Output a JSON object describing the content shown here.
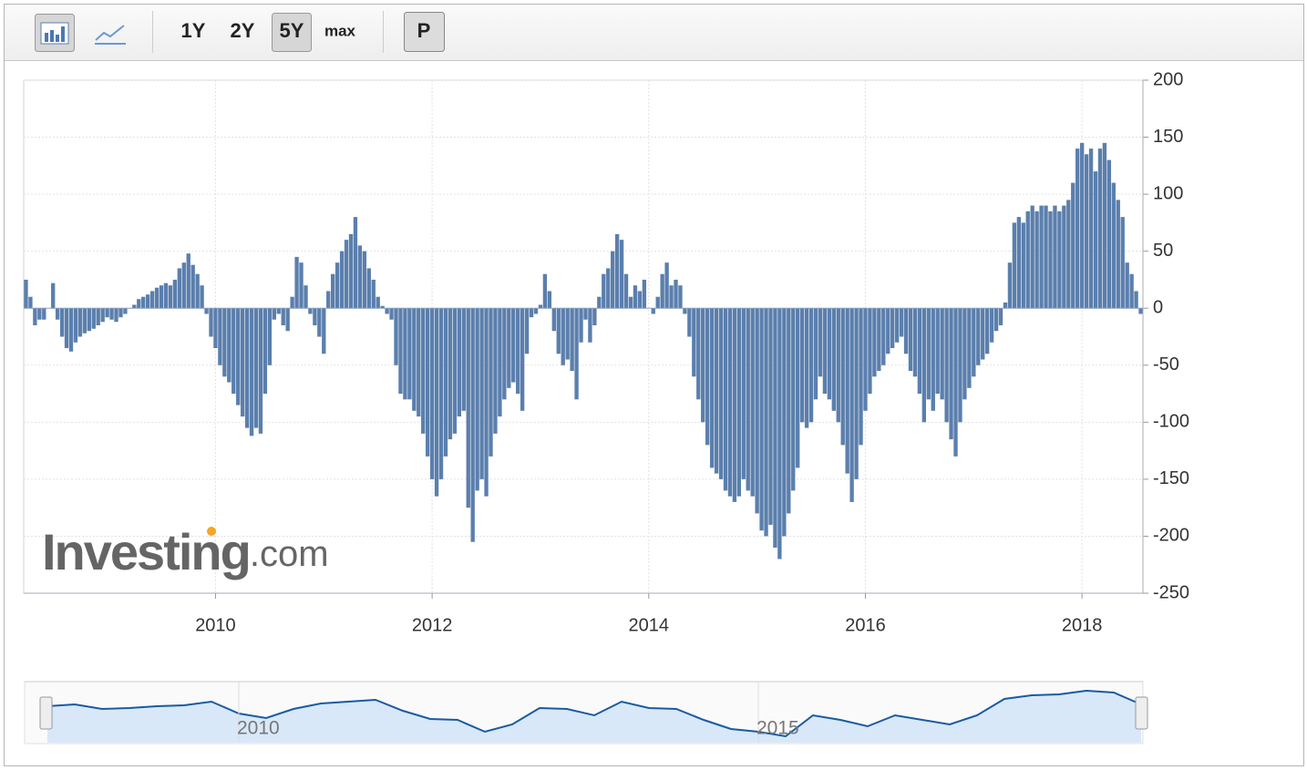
{
  "toolbar": {
    "ranges": [
      "1Y",
      "2Y",
      "5Y",
      "max"
    ],
    "button": "P"
  },
  "watermark": [
    "Investing",
    ".com"
  ],
  "chart_data": [
    {
      "type": "bar",
      "color": "#5b7fad",
      "grid": true,
      "ylim": [
        -250,
        200
      ],
      "yticks": [
        -250,
        -200,
        -150,
        -100,
        -50,
        0,
        50,
        100,
        150,
        200
      ],
      "categories": [
        null,
        null,
        null,
        null,
        null,
        null,
        null,
        null,
        null,
        null,
        null,
        null,
        null,
        null,
        null,
        null,
        null,
        null,
        null,
        null,
        null,
        null,
        null,
        null,
        null,
        null,
        null,
        null,
        null,
        null,
        null,
        null,
        null,
        null,
        null,
        null,
        null,
        null,
        null,
        null,
        null,
        null,
        "2010",
        null,
        null,
        null,
        null,
        null,
        null,
        null,
        null,
        null,
        null,
        null,
        null,
        null,
        null,
        null,
        null,
        null,
        null,
        null,
        null,
        null,
        null,
        null,
        null,
        null,
        null,
        null,
        null,
        null,
        null,
        null,
        null,
        null,
        null,
        null,
        null,
        null,
        null,
        null,
        null,
        null,
        null,
        null,
        null,
        null,
        null,
        null,
        "2012",
        null,
        null,
        null,
        null,
        null,
        null,
        null,
        null,
        null,
        null,
        null,
        null,
        null,
        null,
        null,
        null,
        null,
        null,
        null,
        null,
        null,
        null,
        null,
        null,
        null,
        null,
        null,
        null,
        null,
        null,
        null,
        null,
        null,
        null,
        null,
        null,
        null,
        null,
        null,
        null,
        null,
        null,
        null,
        null,
        null,
        null,
        null,
        "2014",
        null,
        null,
        null,
        null,
        null,
        null,
        null,
        null,
        null,
        null,
        null,
        null,
        null,
        null,
        null,
        null,
        null,
        null,
        null,
        null,
        null,
        null,
        null,
        null,
        null,
        null,
        null,
        null,
        null,
        null,
        null,
        null,
        null,
        null,
        null,
        null,
        null,
        null,
        null,
        null,
        null,
        null,
        null,
        null,
        null,
        null,
        null,
        "2016",
        null,
        null,
        null,
        null,
        null,
        null,
        null,
        null,
        null,
        null,
        null,
        null,
        null,
        null,
        null,
        null,
        null,
        null,
        null,
        null,
        null,
        null,
        null,
        null,
        null,
        null,
        null,
        null,
        null,
        null,
        null,
        null,
        null,
        null,
        null,
        null,
        null,
        null,
        null,
        null,
        null,
        null,
        null,
        null,
        null,
        null,
        null,
        "2018",
        null,
        null,
        null,
        null,
        null,
        null,
        null,
        null,
        null,
        null,
        null,
        null,
        null
      ],
      "values": [
        25,
        10,
        -15,
        -10,
        -10,
        0,
        22,
        -10,
        -25,
        -35,
        -38,
        -30,
        -25,
        -22,
        -20,
        -18,
        -15,
        -12,
        -8,
        -10,
        -12,
        -8,
        -5,
        0,
        3,
        8,
        10,
        12,
        15,
        18,
        20,
        22,
        20,
        25,
        35,
        40,
        48,
        38,
        30,
        20,
        -5,
        -25,
        -35,
        -50,
        -60,
        -65,
        -75,
        -85,
        -95,
        -105,
        -112,
        -105,
        -110,
        -75,
        -50,
        -10,
        -5,
        -15,
        -20,
        10,
        45,
        40,
        20,
        -5,
        -15,
        -25,
        -40,
        15,
        30,
        40,
        50,
        60,
        65,
        80,
        55,
        50,
        35,
        25,
        10,
        2,
        -5,
        -10,
        -50,
        -75,
        -80,
        -80,
        -90,
        -95,
        -110,
        -130,
        -150,
        -165,
        -150,
        -130,
        -115,
        -110,
        -95,
        -90,
        -175,
        -205,
        -160,
        -150,
        -165,
        -130,
        -110,
        -95,
        -80,
        -70,
        -65,
        -75,
        -90,
        -40,
        -8,
        -5,
        3,
        30,
        15,
        -20,
        -40,
        -50,
        -45,
        -55,
        -80,
        -30,
        -10,
        -30,
        -15,
        10,
        30,
        35,
        50,
        65,
        60,
        30,
        10,
        20,
        15,
        25,
        0,
        -5,
        10,
        30,
        40,
        20,
        25,
        20,
        -5,
        -25,
        -60,
        -80,
        -100,
        -120,
        -140,
        -145,
        -150,
        -160,
        -165,
        -170,
        -165,
        -150,
        -160,
        -165,
        -180,
        -195,
        -200,
        -190,
        -210,
        -220,
        -200,
        -180,
        -160,
        -140,
        -100,
        -105,
        -100,
        -80,
        -60,
        -75,
        -80,
        -90,
        -100,
        -120,
        -145,
        -170,
        -150,
        -120,
        -90,
        -75,
        -60,
        -55,
        -50,
        -40,
        -35,
        -30,
        -25,
        -40,
        -55,
        -60,
        -75,
        -100,
        -80,
        -90,
        -75,
        -80,
        -100,
        -115,
        -130,
        -100,
        -80,
        -70,
        -60,
        -50,
        -45,
        -40,
        -30,
        -20,
        -15,
        5,
        40,
        75,
        80,
        75,
        85,
        90,
        85,
        90,
        90,
        85,
        90,
        85,
        90,
        95,
        110,
        140,
        145,
        135,
        140,
        120,
        140,
        145,
        130,
        110,
        95,
        80,
        40,
        30,
        15,
        -5
      ]
    },
    {
      "type": "line",
      "color": "#1a5aa0",
      "ylim": [
        0,
        70
      ],
      "categories": [
        null,
        null,
        null,
        null,
        null,
        null,
        null,
        "2010",
        null,
        null,
        null,
        null,
        null,
        null,
        null,
        null,
        null,
        null,
        null,
        null,
        null,
        null,
        null,
        null,
        null,
        null,
        "2015",
        null,
        null,
        null,
        null,
        null,
        null,
        null,
        null,
        null,
        null,
        null,
        null,
        null,
        null
      ],
      "values": [
        40,
        42,
        37,
        38,
        40,
        41,
        45,
        32,
        27,
        37,
        43,
        45,
        47,
        35,
        26,
        25,
        12,
        20,
        38,
        37,
        30,
        45,
        38,
        37,
        25,
        15,
        12,
        7,
        30,
        25,
        18,
        30,
        25,
        20,
        30,
        48,
        52,
        53,
        57,
        55,
        42
      ]
    }
  ]
}
